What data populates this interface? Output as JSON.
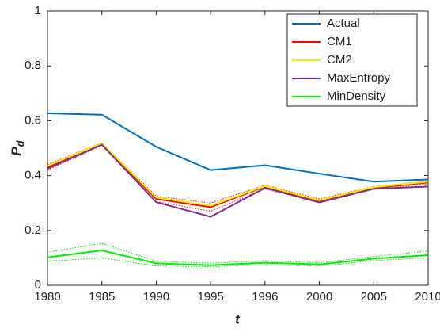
{
  "chart_data": {
    "type": "line",
    "xlabel": "t",
    "ylabel": "P",
    "ylabel_subscript": "d",
    "categories": [
      "1980",
      "1985",
      "1990",
      "1995",
      "1996",
      "2000",
      "2005",
      "2010"
    ],
    "ylim": [
      0,
      1
    ],
    "yticks": [
      0,
      0.2,
      0.4,
      0.6,
      0.8,
      1
    ],
    "grid": false,
    "legend": "top-right",
    "series": [
      {
        "name": "Actual",
        "color": "#0072bd",
        "values": [
          0.627,
          0.622,
          0.505,
          0.42,
          0.438,
          0.407,
          0.378,
          0.386
        ]
      },
      {
        "color": "#ff0000",
        "dash": true,
        "values": [
          0.44,
          0.52,
          0.325,
          0.3,
          0.365,
          0.315,
          0.36,
          0.38
        ]
      },
      {
        "color": "#ff0000",
        "dash": true,
        "values": [
          0.42,
          0.51,
          0.305,
          0.27,
          0.352,
          0.302,
          0.35,
          0.37
        ]
      },
      {
        "name": "CM1",
        "color": "#ff0000",
        "values": [
          0.43,
          0.515,
          0.315,
          0.285,
          0.36,
          0.308,
          0.355,
          0.375
        ]
      },
      {
        "name": "CM2",
        "color": "#f2f000",
        "values": [
          0.435,
          0.518,
          0.32,
          0.29,
          0.362,
          0.31,
          0.358,
          0.378
        ]
      },
      {
        "name": "MaxEntropy",
        "color": "#7e2f8e",
        "values": [
          0.425,
          0.513,
          0.303,
          0.25,
          0.355,
          0.302,
          0.352,
          0.36
        ]
      },
      {
        "color": "#00dd00",
        "dash": true,
        "values": [
          0.12,
          0.153,
          0.088,
          0.08,
          0.09,
          0.082,
          0.105,
          0.125
        ]
      },
      {
        "color": "#00dd00",
        "dash": true,
        "values": [
          0.088,
          0.1,
          0.07,
          0.068,
          0.075,
          0.07,
          0.09,
          0.1
        ]
      },
      {
        "name": "MinDensity",
        "color": "#00ee00",
        "values": [
          0.102,
          0.127,
          0.08,
          0.073,
          0.082,
          0.076,
          0.097,
          0.11
        ]
      }
    ]
  }
}
